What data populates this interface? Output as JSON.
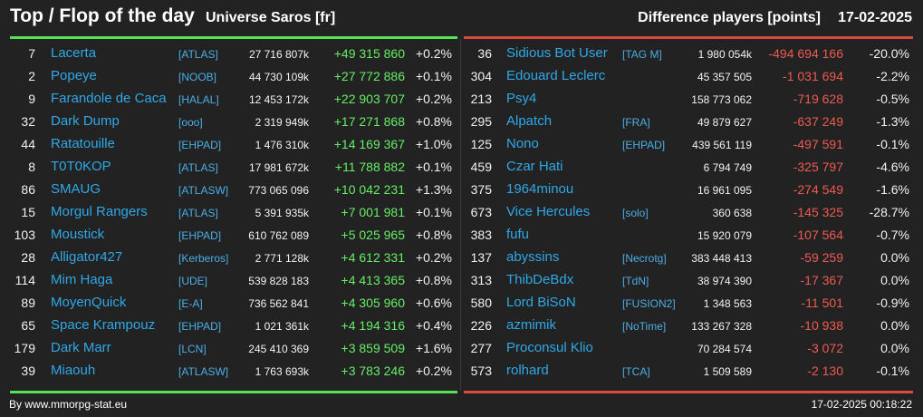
{
  "header": {
    "title": "Top / Flop of the day",
    "universe": "Universe Saros [fr]",
    "metric": "Difference players [points]",
    "date": "17-02-2025"
  },
  "colors": {
    "background": "#222222",
    "name": "#2fa8e8",
    "positive": "#66ee66",
    "negative": "#ee5a52",
    "top_line": "#55e055",
    "flop_line": "#d94a3e"
  },
  "top": [
    {
      "rank": "7",
      "name": "Lacerta",
      "alliance": "[ATLAS]",
      "score": "27 716 807k",
      "diff": "+49 315 860",
      "pct": "+0.2%"
    },
    {
      "rank": "2",
      "name": "Popeye",
      "alliance": "[NOOB]",
      "score": "44 730 109k",
      "diff": "+27 772 886",
      "pct": "+0.1%"
    },
    {
      "rank": "9",
      "name": "Farandole de Caca",
      "alliance": "[HALAL]",
      "score": "12 453 172k",
      "diff": "+22 903 707",
      "pct": "+0.2%"
    },
    {
      "rank": "32",
      "name": "Dark Dump",
      "alliance": "[ooo]",
      "score": "2 319 949k",
      "diff": "+17 271 868",
      "pct": "+0.8%"
    },
    {
      "rank": "44",
      "name": "Ratatouille",
      "alliance": "[EHPAD]",
      "score": "1 476 310k",
      "diff": "+14 169 367",
      "pct": "+1.0%"
    },
    {
      "rank": "8",
      "name": "T0T0KOP",
      "alliance": "[ATLAS]",
      "score": "17 981 672k",
      "diff": "+11 788 882",
      "pct": "+0.1%"
    },
    {
      "rank": "86",
      "name": "SMAUG",
      "alliance": "[ATLASW]",
      "score": "773 065 096",
      "diff": "+10 042 231",
      "pct": "+1.3%"
    },
    {
      "rank": "15",
      "name": "Morgul Rangers",
      "alliance": "[ATLAS]",
      "score": "5 391 935k",
      "diff": "+7 001 981",
      "pct": "+0.1%"
    },
    {
      "rank": "103",
      "name": "Moustick",
      "alliance": "[EHPAD]",
      "score": "610 762 089",
      "diff": "+5 025 965",
      "pct": "+0.8%"
    },
    {
      "rank": "28",
      "name": "Alligator427",
      "alliance": "[Kerberos]",
      "score": "2 771 128k",
      "diff": "+4 612 331",
      "pct": "+0.2%"
    },
    {
      "rank": "114",
      "name": "Mim Haga",
      "alliance": "[UDE]",
      "score": "539 828 183",
      "diff": "+4 413 365",
      "pct": "+0.8%"
    },
    {
      "rank": "89",
      "name": "MoyenQuick",
      "alliance": "[E-A]",
      "score": "736 562 841",
      "diff": "+4 305 960",
      "pct": "+0.6%"
    },
    {
      "rank": "65",
      "name": "Space Krampouz",
      "alliance": "[EHPAD]",
      "score": "1 021 361k",
      "diff": "+4 194 316",
      "pct": "+0.4%"
    },
    {
      "rank": "179",
      "name": "Dark Marr",
      "alliance": "[LCN]",
      "score": "245 410 369",
      "diff": "+3 859 509",
      "pct": "+1.6%"
    },
    {
      "rank": "39",
      "name": "Miaouh",
      "alliance": "[ATLASW]",
      "score": "1 763 693k",
      "diff": "+3 783 246",
      "pct": "+0.2%"
    }
  ],
  "flop": [
    {
      "rank": "36",
      "name": "Sidious Bot User",
      "alliance": "[TAG M]",
      "score": "1 980 054k",
      "diff": "-494 694 166",
      "pct": "-20.0%"
    },
    {
      "rank": "304",
      "name": "Edouard Leclerc",
      "alliance": "",
      "score": "45 357 505",
      "diff": "-1 031 694",
      "pct": "-2.2%"
    },
    {
      "rank": "213",
      "name": "Psy4",
      "alliance": "",
      "score": "158 773 062",
      "diff": "-719 628",
      "pct": "-0.5%"
    },
    {
      "rank": "295",
      "name": "Alpatch",
      "alliance": "[FRA]",
      "score": "49 879 627",
      "diff": "-637 249",
      "pct": "-1.3%"
    },
    {
      "rank": "125",
      "name": "Nono",
      "alliance": "[EHPAD]",
      "score": "439 561 119",
      "diff": "-497 591",
      "pct": "-0.1%"
    },
    {
      "rank": "459",
      "name": "Czar Hati",
      "alliance": "",
      "score": "6 794 749",
      "diff": "-325 797",
      "pct": "-4.6%"
    },
    {
      "rank": "375",
      "name": "1964minou",
      "alliance": "",
      "score": "16 961 095",
      "diff": "-274 549",
      "pct": "-1.6%"
    },
    {
      "rank": "673",
      "name": "Vice Hercules",
      "alliance": "[solo]",
      "score": "360 638",
      "diff": "-145 325",
      "pct": "-28.7%"
    },
    {
      "rank": "383",
      "name": "fufu",
      "alliance": "",
      "score": "15 920 079",
      "diff": "-107 564",
      "pct": "-0.7%"
    },
    {
      "rank": "137",
      "name": "abyssins",
      "alliance": "[Necrotg]",
      "score": "383 448 413",
      "diff": "-59 259",
      "pct": "0.0%"
    },
    {
      "rank": "313",
      "name": "ThibDeBdx",
      "alliance": "[TdN]",
      "score": "38 974 390",
      "diff": "-17 367",
      "pct": "0.0%"
    },
    {
      "rank": "580",
      "name": "Lord BiSoN",
      "alliance": "[FUSION2]",
      "score": "1 348 563",
      "diff": "-11 501",
      "pct": "-0.9%"
    },
    {
      "rank": "226",
      "name": "azmimik",
      "alliance": "[NoTime]",
      "score": "133 267 328",
      "diff": "-10 938",
      "pct": "0.0%"
    },
    {
      "rank": "277",
      "name": "Proconsul Klio",
      "alliance": "",
      "score": "70 284 574",
      "diff": "-3 072",
      "pct": "0.0%"
    },
    {
      "rank": "573",
      "name": "rolhard",
      "alliance": "[TCA]",
      "score": "1 509 589",
      "diff": "-2 130",
      "pct": "-0.1%"
    }
  ],
  "footer": {
    "source": "By www.mmorpg-stat.eu",
    "timestamp": "17-02-2025 00:18:22"
  }
}
